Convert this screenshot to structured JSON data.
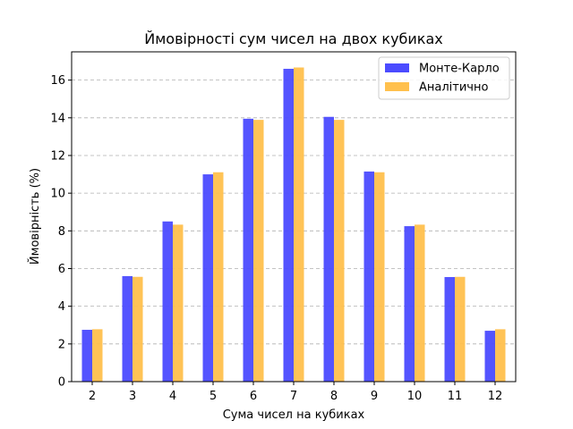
{
  "chart_data": {
    "type": "bar",
    "title": "Ймовірності сум чисел на двох кубиках",
    "xlabel": "Сума чисел на кубиках",
    "ylabel": "Ймовірність (%)",
    "categories": [
      "2",
      "3",
      "4",
      "5",
      "6",
      "7",
      "8",
      "9",
      "10",
      "11",
      "12"
    ],
    "series": [
      {
        "name": "Монте-Карло",
        "color": "#4b4bff",
        "values": [
          2.75,
          5.6,
          8.5,
          11.0,
          13.95,
          16.6,
          14.05,
          11.15,
          8.25,
          5.55,
          2.7
        ]
      },
      {
        "name": "Аналітично",
        "color": "#ffc04d",
        "values": [
          2.78,
          5.56,
          8.33,
          11.11,
          13.89,
          16.67,
          13.89,
          11.11,
          8.33,
          5.56,
          2.78
        ]
      }
    ],
    "ylim": [
      0,
      17.5
    ],
    "yticks": [
      "0",
      "2",
      "4",
      "6",
      "8",
      "10",
      "12",
      "14",
      "16"
    ],
    "grid": "y-dashed",
    "legend_position": "top-right"
  }
}
